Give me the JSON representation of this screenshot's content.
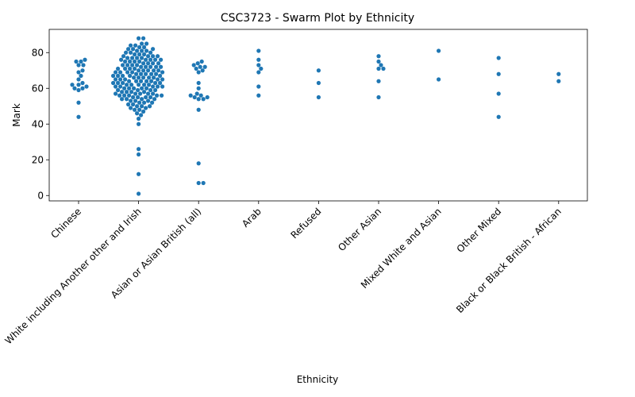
{
  "chart_data": {
    "type": "scatter",
    "subtype": "swarm",
    "title": "CSC3723 - Swarm Plot by Ethnicity",
    "xlabel": "Ethnicity",
    "ylabel": "Mark",
    "ylim": [
      -3,
      93
    ],
    "yticks": [
      0,
      20,
      40,
      60,
      80
    ],
    "grid": false,
    "legend": "none",
    "color": "#1f77b4",
    "categories": [
      "Chinese",
      "White including Another other and Irish",
      "Asian or Asian British (all)",
      "Arab",
      "Refused",
      "Other Asian",
      "Mixed White and Asian",
      "Other Mixed",
      "Black or Black British - African"
    ],
    "series": [
      {
        "category": "Chinese",
        "values": [
          44,
          52,
          59,
          60,
          60,
          61,
          62,
          62,
          63,
          65,
          67,
          69,
          70,
          73,
          73,
          75,
          75,
          76
        ]
      },
      {
        "category": "White including Another other and Irish",
        "values": [
          1,
          12,
          23,
          26,
          40,
          43,
          45,
          46,
          47,
          48,
          48,
          49,
          49,
          50,
          50,
          50,
          51,
          51,
          52,
          52,
          52,
          53,
          53,
          53,
          54,
          54,
          54,
          54,
          55,
          55,
          55,
          55,
          56,
          56,
          56,
          56,
          56,
          57,
          57,
          57,
          57,
          57,
          58,
          58,
          58,
          58,
          59,
          59,
          59,
          59,
          60,
          60,
          60,
          60,
          60,
          61,
          61,
          61,
          61,
          61,
          62,
          62,
          62,
          62,
          62,
          63,
          63,
          63,
          63,
          63,
          64,
          64,
          64,
          64,
          64,
          65,
          65,
          65,
          65,
          65,
          66,
          66,
          66,
          66,
          66,
          67,
          67,
          67,
          67,
          67,
          68,
          68,
          68,
          68,
          68,
          69,
          69,
          69,
          69,
          69,
          70,
          70,
          70,
          70,
          70,
          71,
          71,
          71,
          71,
          72,
          72,
          72,
          72,
          72,
          73,
          73,
          73,
          73,
          74,
          74,
          74,
          74,
          75,
          75,
          75,
          75,
          76,
          76,
          76,
          76,
          76,
          77,
          77,
          77,
          77,
          78,
          78,
          78,
          78,
          79,
          79,
          79,
          80,
          80,
          80,
          81,
          81,
          81,
          82,
          82,
          82,
          83,
          83,
          84,
          84,
          85,
          85,
          88,
          88
        ]
      },
      {
        "category": "Asian or Asian British (all)",
        "values": [
          7,
          7,
          18,
          48,
          54,
          54,
          55,
          55,
          56,
          56,
          57,
          60,
          63,
          69,
          70,
          71,
          72,
          72,
          73,
          74,
          75
        ]
      },
      {
        "category": "Arab",
        "values": [
          56,
          61,
          69,
          71,
          73,
          76,
          81
        ]
      },
      {
        "category": "Refused",
        "values": [
          55,
          63,
          70
        ]
      },
      {
        "category": "Other Asian",
        "values": [
          55,
          64,
          71,
          71,
          73,
          75,
          78
        ]
      },
      {
        "category": "Mixed White and Asian",
        "values": [
          65,
          81
        ]
      },
      {
        "category": "Other Mixed",
        "values": [
          44,
          57,
          68,
          77
        ]
      },
      {
        "category": "Black or Black British - African",
        "values": [
          64,
          68
        ]
      }
    ]
  }
}
